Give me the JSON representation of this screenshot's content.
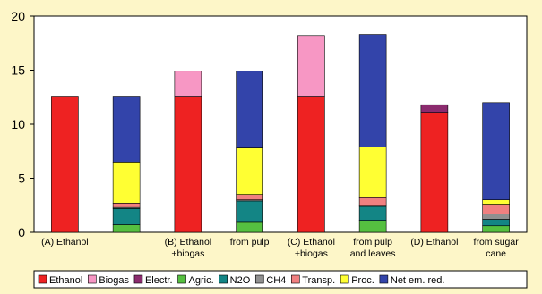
{
  "chart_data": {
    "type": "bar",
    "stacked": true,
    "ylim": [
      0,
      20
    ],
    "yticks": [
      0,
      5,
      10,
      15,
      20
    ],
    "grid": false,
    "legend_position": "bottom",
    "categories": [
      [
        "(A) Ethanol"
      ],
      [
        ""
      ],
      [
        "(B) Ethanol",
        "+biogas"
      ],
      [
        "from pulp"
      ],
      [
        "(C) Ethanol",
        "+biogas"
      ],
      [
        "from pulp",
        "and leaves"
      ],
      [
        "(D) Ethanol"
      ],
      [
        "from sugar",
        "cane"
      ]
    ],
    "series": [
      {
        "name": "Ethanol",
        "color": "#ee2222",
        "values": [
          12.6,
          0,
          12.6,
          0,
          12.6,
          0,
          11.1,
          0
        ]
      },
      {
        "name": "Biogas",
        "color": "#f797c4",
        "values": [
          0,
          0,
          2.3,
          0,
          5.6,
          0,
          0,
          0
        ]
      },
      {
        "name": "Electr.",
        "color": "#8b2b6e",
        "values": [
          0,
          0,
          0,
          0,
          0,
          0,
          0.7,
          0
        ]
      },
      {
        "name": "Agric.",
        "color": "#55c040",
        "values": [
          0,
          0.7,
          0,
          1.0,
          0,
          1.1,
          0,
          0.6
        ]
      },
      {
        "name": "N2O",
        "color": "#138585",
        "values": [
          0,
          1.5,
          0,
          1.9,
          0,
          1.3,
          0,
          0.6
        ]
      },
      {
        "name": "CH4",
        "color": "#909090",
        "values": [
          0,
          0.1,
          0,
          0.1,
          0,
          0.1,
          0,
          0.5
        ]
      },
      {
        "name": "Transp.",
        "color": "#f08080",
        "values": [
          0,
          0.4,
          0,
          0.5,
          0,
          0.7,
          0,
          0.9
        ]
      },
      {
        "name": "Proc.",
        "color": "#ffff33",
        "values": [
          0,
          3.8,
          0,
          4.3,
          0,
          4.7,
          0,
          0.4
        ]
      },
      {
        "name": "Net em. red.",
        "color": "#3344aa",
        "values": [
          0,
          6.1,
          0,
          7.1,
          0,
          10.4,
          0,
          9.0
        ]
      }
    ]
  }
}
